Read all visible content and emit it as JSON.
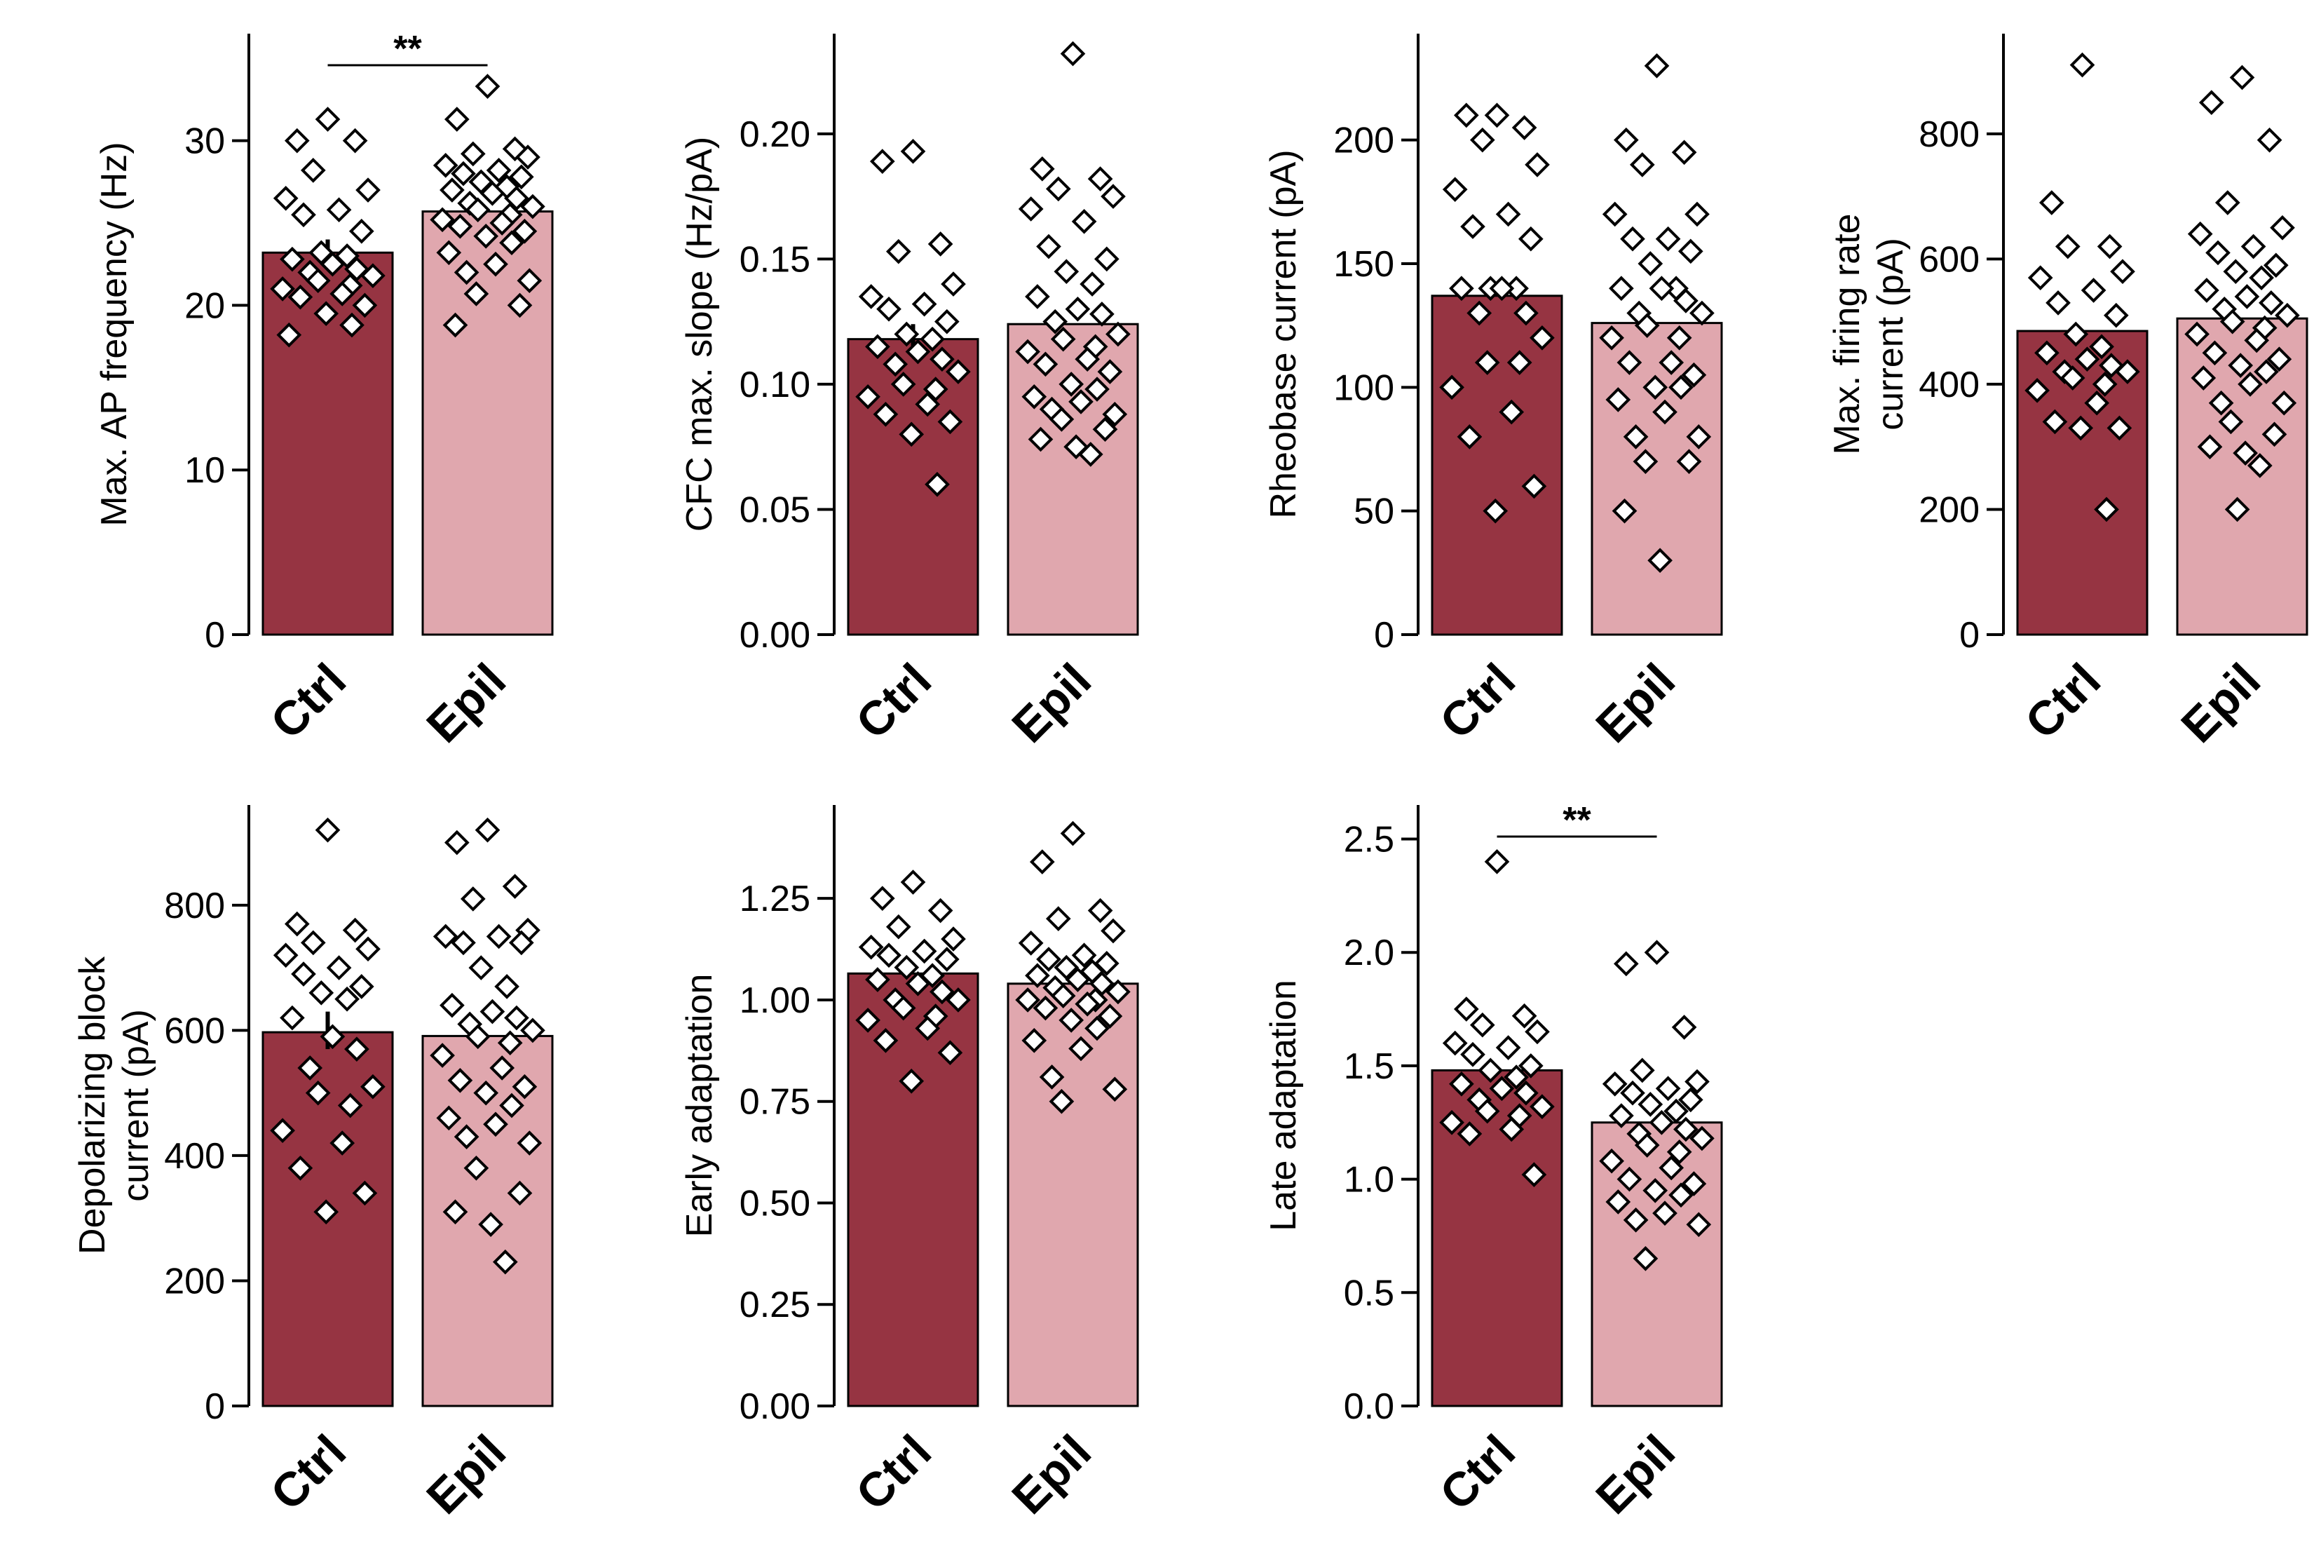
{
  "colors": {
    "ctrl": "#963442",
    "epil": "#e0a7ae"
  },
  "chart_data": [
    {
      "type": "bar",
      "ylabel": [
        "Max. AP frequency (Hz)"
      ],
      "ylim": [
        0,
        36.5
      ],
      "yticks": [
        0,
        10,
        20,
        30
      ],
      "tick_labels": [
        "0",
        "10",
        "20",
        "30"
      ],
      "categories": [
        "Ctrl",
        "Epil"
      ],
      "values": [
        23.2,
        25.7
      ],
      "error": [
        [
          22.4,
          24.0
        ],
        null
      ],
      "points": [
        [
          31.3,
          30.0,
          30.0,
          28.2,
          27.0,
          26.5,
          25.8,
          25.5,
          24.5,
          23.2,
          23.0,
          22.8,
          22.5,
          22.2,
          22.0,
          21.8,
          21.5,
          21.2,
          21.0,
          20.7,
          20.5,
          20.0,
          19.5,
          18.8,
          18.2
        ],
        [
          33.3,
          31.3,
          29.5,
          29.2,
          29.0,
          28.5,
          28.2,
          28.0,
          27.8,
          27.5,
          27.2,
          27.0,
          26.8,
          26.5,
          26.2,
          26.0,
          25.8,
          25.5,
          25.2,
          25.0,
          24.8,
          24.5,
          24.2,
          23.8,
          23.2,
          22.5,
          22.0,
          21.5,
          20.7,
          20.0,
          18.8
        ]
      ],
      "significance": "**"
    },
    {
      "type": "bar",
      "ylabel": [
        "CFC max. slope (Hz/pA)"
      ],
      "ylim": [
        0,
        0.24
      ],
      "yticks": [
        0,
        0.05,
        0.1,
        0.15,
        0.2
      ],
      "tick_labels": [
        "0.00",
        "0.05",
        "0.10",
        "0.15",
        "0.20"
      ],
      "categories": [
        "Ctrl",
        "Epil"
      ],
      "values": [
        0.118,
        0.124
      ],
      "error": [
        [
          0.112,
          0.124
        ],
        null
      ],
      "points": [
        [
          0.193,
          0.189,
          0.156,
          0.153,
          0.14,
          0.135,
          0.132,
          0.13,
          0.125,
          0.12,
          0.118,
          0.115,
          0.113,
          0.11,
          0.108,
          0.105,
          0.1,
          0.098,
          0.095,
          0.092,
          0.088,
          0.085,
          0.08,
          0.06
        ],
        [
          0.232,
          0.186,
          0.182,
          0.178,
          0.175,
          0.17,
          0.165,
          0.155,
          0.15,
          0.145,
          0.14,
          0.135,
          0.13,
          0.128,
          0.125,
          0.12,
          0.118,
          0.115,
          0.113,
          0.11,
          0.108,
          0.105,
          0.1,
          0.098,
          0.095,
          0.093,
          0.09,
          0.088,
          0.086,
          0.082,
          0.078,
          0.075,
          0.072
        ]
      ]
    },
    {
      "type": "bar",
      "ylabel": [
        "Rheobase current (pA)"
      ],
      "ylim": [
        0,
        243
      ],
      "yticks": [
        0,
        50,
        100,
        150,
        200
      ],
      "tick_labels": [
        "0",
        "50",
        "100",
        "150",
        "200"
      ],
      "categories": [
        "Ctrl",
        "Epil"
      ],
      "values": [
        137,
        126
      ],
      "error": [
        null,
        null
      ],
      "points": [
        [
          210,
          210,
          205,
          200,
          190,
          180,
          170,
          165,
          160,
          140,
          140,
          140,
          140,
          130,
          130,
          120,
          110,
          110,
          100,
          90,
          80,
          60,
          50
        ],
        [
          230,
          200,
          195,
          190,
          170,
          170,
          160,
          160,
          155,
          150,
          140,
          140,
          140,
          135,
          130,
          130,
          125,
          120,
          120,
          110,
          110,
          105,
          100,
          100,
          95,
          90,
          80,
          80,
          70,
          70,
          50,
          30
        ]
      ]
    },
    {
      "type": "bar",
      "ylabel": [
        "Max. firing rate",
        "current (pA)"
      ],
      "ylim": [
        0,
        960
      ],
      "yticks": [
        0,
        200,
        400,
        600,
        800
      ],
      "tick_labels": [
        "0",
        "200",
        "400",
        "600",
        "800"
      ],
      "categories": [
        "Ctrl",
        "Epil"
      ],
      "values": [
        485,
        505
      ],
      "error": [
        null,
        null
      ],
      "points": [
        [
          910,
          690,
          620,
          620,
          580,
          570,
          550,
          530,
          510,
          480,
          460,
          450,
          440,
          430,
          420,
          420,
          410,
          400,
          390,
          370,
          340,
          330,
          330,
          200
        ],
        [
          890,
          850,
          790,
          690,
          650,
          640,
          620,
          610,
          590,
          580,
          570,
          550,
          540,
          530,
          520,
          510,
          500,
          490,
          480,
          470,
          450,
          440,
          430,
          420,
          410,
          400,
          370,
          370,
          340,
          320,
          300,
          290,
          270,
          200
        ]
      ]
    },
    {
      "type": "bar",
      "ylabel": [
        "Depolarizing block",
        "current (pA)"
      ],
      "ylim": [
        0,
        960
      ],
      "yticks": [
        0,
        200,
        400,
        600,
        800
      ],
      "tick_labels": [
        "0",
        "200",
        "400",
        "600",
        "800"
      ],
      "categories": [
        "Ctrl",
        "Epil"
      ],
      "values": [
        597,
        591
      ],
      "error": [
        [
          570,
          630
        ],
        null
      ],
      "points": [
        [
          920,
          770,
          760,
          740,
          730,
          720,
          700,
          690,
          670,
          660,
          650,
          620,
          590,
          570,
          540,
          510,
          500,
          480,
          440,
          420,
          380,
          340,
          310
        ],
        [
          920,
          900,
          830,
          810,
          760,
          750,
          750,
          740,
          740,
          700,
          670,
          640,
          630,
          620,
          610,
          600,
          590,
          580,
          560,
          540,
          520,
          510,
          500,
          480,
          460,
          450,
          430,
          420,
          380,
          340,
          310,
          290,
          230
        ]
      ]
    },
    {
      "type": "bar",
      "ylabel": [
        "Early adaptation"
      ],
      "ylim": [
        0,
        1.48
      ],
      "yticks": [
        0,
        0.25,
        0.5,
        0.75,
        1.0,
        1.25
      ],
      "tick_labels": [
        "0.00",
        "0.25",
        "0.50",
        "0.75",
        "1.00",
        "1.25"
      ],
      "categories": [
        "Ctrl",
        "Epil"
      ],
      "values": [
        1.065,
        1.04
      ],
      "error": [
        null,
        null
      ],
      "points": [
        [
          1.29,
          1.25,
          1.22,
          1.18,
          1.15,
          1.13,
          1.12,
          1.11,
          1.1,
          1.08,
          1.06,
          1.05,
          1.04,
          1.02,
          1.0,
          1.0,
          0.98,
          0.96,
          0.95,
          0.93,
          0.9,
          0.87,
          0.8
        ],
        [
          1.41,
          1.34,
          1.22,
          1.2,
          1.17,
          1.14,
          1.11,
          1.1,
          1.09,
          1.08,
          1.07,
          1.06,
          1.05,
          1.04,
          1.03,
          1.02,
          1.01,
          1.0,
          1.0,
          0.99,
          0.98,
          0.96,
          0.95,
          0.93,
          0.9,
          0.88,
          0.81,
          0.78,
          0.75
        ]
      ]
    },
    {
      "type": "bar",
      "ylabel": [
        "Late adaptation"
      ],
      "ylim": [
        0,
        2.65
      ],
      "yticks": [
        0,
        0.5,
        1.0,
        1.5,
        2.0,
        2.5
      ],
      "tick_labels": [
        "0.0",
        "0.5",
        "1.0",
        "1.5",
        "2.0",
        "2.5"
      ],
      "categories": [
        "Ctrl",
        "Epil"
      ],
      "values": [
        1.48,
        1.25
      ],
      "error": [
        null,
        null
      ],
      "points": [
        [
          2.4,
          1.75,
          1.72,
          1.68,
          1.65,
          1.6,
          1.58,
          1.55,
          1.5,
          1.48,
          1.45,
          1.42,
          1.4,
          1.38,
          1.35,
          1.32,
          1.3,
          1.28,
          1.25,
          1.22,
          1.2,
          1.02
        ],
        [
          2.0,
          1.95,
          1.67,
          1.48,
          1.43,
          1.42,
          1.4,
          1.38,
          1.35,
          1.33,
          1.3,
          1.28,
          1.25,
          1.22,
          1.2,
          1.18,
          1.15,
          1.12,
          1.08,
          1.05,
          1.0,
          0.98,
          0.95,
          0.93,
          0.9,
          0.85,
          0.82,
          0.8,
          0.65
        ]
      ],
      "significance": "**"
    }
  ]
}
